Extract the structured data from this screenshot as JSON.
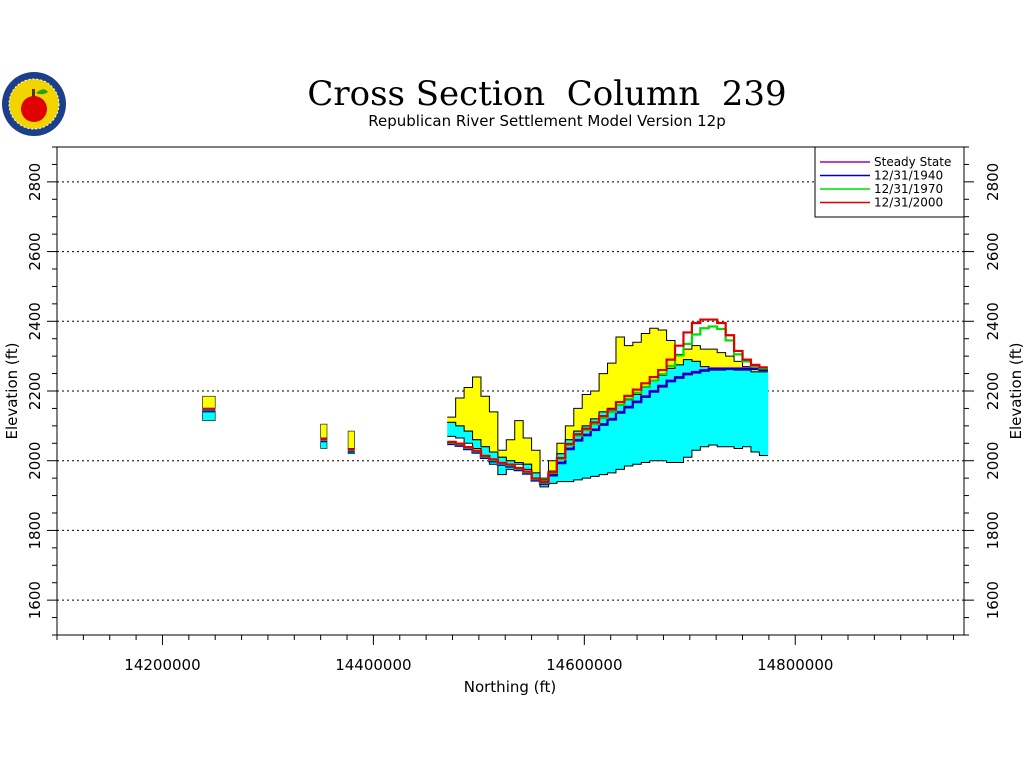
{
  "chart_data": {
    "type": "area",
    "title": "Cross Section  Column  239",
    "subtitle": "Republican River Settlement Model Version 12p",
    "xlabel": "Northing (ft)",
    "ylabel": "Elevation (ft)",
    "xlim": [
      14100000,
      14960000
    ],
    "ylim": [
      1500,
      2900
    ],
    "xticks": [
      14200000,
      14400000,
      14600000,
      14800000
    ],
    "xtick_labels": [
      "14200000",
      "14400000",
      "14600000",
      "14800000"
    ],
    "yticks": [
      1600,
      1800,
      2000,
      2200,
      2400,
      2600,
      2800
    ],
    "ytick_labels": [
      "1600",
      "1800",
      "2000",
      "2200",
      "2400",
      "2600",
      "2800"
    ],
    "grid": {
      "y": true,
      "x": false,
      "style": "dotted"
    },
    "legend_position": "top-right",
    "colors": {
      "upper_layer": "#ffff00",
      "lower_layer": "#00ffff",
      "steady_state": "#aa00aa",
      "y1940": "#0000cc",
      "y1970": "#00dd00",
      "y2000": "#dd0000"
    },
    "layers": [
      {
        "name": "upper",
        "color": "#ffff00",
        "segments": [
          {
            "x": [
              14238000,
              14250000
            ],
            "top": [
              2185,
              2185
            ],
            "bottom": [
              2140,
              2140
            ]
          },
          {
            "x": [
              14350000,
              14356000
            ],
            "top": [
              2105,
              2105
            ],
            "bottom": [
              2065,
              2065
            ]
          },
          {
            "x": [
              14376000,
              14382000
            ],
            "top": [
              2085,
              2085
            ],
            "bottom": [
              2035,
              2035
            ]
          },
          {
            "x": [
              14474000,
              14482000,
              14490000,
              14498000,
              14506000,
              14514000,
              14522000,
              14530000,
              14538000,
              14546000,
              14554000,
              14562000,
              14570000,
              14578000,
              14586000,
              14594000,
              14602000,
              14610000,
              14618000,
              14626000,
              14634000,
              14642000,
              14650000,
              14658000,
              14666000,
              14674000,
              14682000,
              14690000,
              14698000,
              14706000,
              14714000,
              14722000,
              14730000,
              14738000,
              14746000,
              14754000,
              14762000,
              14770000
            ],
            "top": [
              2125,
              2180,
              2210,
              2240,
              2185,
              2140,
              2030,
              2060,
              2115,
              2065,
              2030,
              1950,
              2000,
              2050,
              2100,
              2150,
              2190,
              2200,
              2250,
              2280,
              2355,
              2330,
              2340,
              2365,
              2380,
              2375,
              2345,
              2305,
              2320,
              2330,
              2320,
              2320,
              2310,
              2300,
              2285,
              2270,
              2265,
              2260
            ],
            "bottom": [
              2110,
              2100,
              2085,
              2060,
              2040,
              2025,
              2010,
              2000,
              1995,
              1990,
              1965,
              1945,
              1970,
              2020,
              2060,
              2085,
              2100,
              2120,
              2140,
              2150,
              2160,
              2175,
              2190,
              2210,
              2230,
              2245,
              2265,
              2275,
              2290,
              2285,
              2270,
              2260,
              2260,
              2265,
              2260,
              2260,
              2255,
              2255
            ]
          }
        ]
      },
      {
        "name": "lower",
        "color": "#00ffff",
        "segments": [
          {
            "x": [
              14238000,
              14250000
            ],
            "top": [
              2140,
              2140
            ],
            "bottom": [
              2115,
              2115
            ]
          },
          {
            "x": [
              14350000,
              14356000
            ],
            "top": [
              2065,
              2065
            ],
            "bottom": [
              2035,
              2035
            ]
          },
          {
            "x": [
              14376000,
              14382000
            ],
            "top": [
              2035,
              2035
            ],
            "bottom": [
              2020,
              2020
            ]
          },
          {
            "x": [
              14474000,
              14482000,
              14490000,
              14498000,
              14506000,
              14514000,
              14522000,
              14530000,
              14538000,
              14546000,
              14554000,
              14562000,
              14570000,
              14578000,
              14586000,
              14594000,
              14602000,
              14610000,
              14618000,
              14626000,
              14634000,
              14642000,
              14650000,
              14658000,
              14666000,
              14674000,
              14682000,
              14690000,
              14698000,
              14706000,
              14714000,
              14722000,
              14730000,
              14738000,
              14746000,
              14754000,
              14762000,
              14770000
            ],
            "top": [
              2110,
              2100,
              2085,
              2060,
              2040,
              2025,
              2010,
              2000,
              1995,
              1990,
              1965,
              1945,
              1970,
              2020,
              2060,
              2085,
              2100,
              2120,
              2140,
              2150,
              2160,
              2175,
              2190,
              2210,
              2230,
              2245,
              2265,
              2275,
              2290,
              2285,
              2270,
              2260,
              2260,
              2265,
              2260,
              2260,
              2255,
              2255
            ],
            "bottom": [
              2070,
              2065,
              2050,
              2035,
              2010,
              1990,
              1960,
              1975,
              1990,
              1975,
              1945,
              1925,
              1935,
              1940,
              1940,
              1945,
              1950,
              1955,
              1960,
              1965,
              1975,
              1985,
              1990,
              1995,
              2000,
              2000,
              1995,
              1995,
              2010,
              2030,
              2040,
              2045,
              2040,
              2040,
              2035,
              2040,
              2025,
              2015
            ]
          }
        ]
      }
    ],
    "series": [
      {
        "name": "Steady State",
        "color": "#aa00aa",
        "segments": [
          {
            "x": [
              14238000,
              14250000
            ],
            "y": [
              2145,
              2145
            ]
          },
          {
            "x": [
              14350000,
              14356000
            ],
            "y": [
              2058,
              2058
            ]
          },
          {
            "x": [
              14376000,
              14382000
            ],
            "y": [
              2028,
              2028
            ]
          },
          {
            "x": [
              14474000,
              14482000,
              14490000,
              14498000,
              14506000,
              14514000,
              14522000,
              14530000,
              14538000,
              14546000,
              14554000,
              14562000,
              14570000,
              14578000,
              14586000,
              14594000,
              14602000,
              14610000,
              14618000,
              14626000,
              14634000,
              14642000,
              14650000,
              14658000,
              14666000,
              14674000,
              14682000,
              14690000,
              14698000,
              14706000,
              14714000,
              14722000,
              14730000,
              14738000,
              14746000,
              14754000,
              14762000,
              14770000
            ],
            "y": [
              2050,
              2045,
              2035,
              2025,
              2010,
              2000,
              1990,
              1985,
              1975,
              1965,
              1945,
              1935,
              1960,
              1995,
              2035,
              2060,
              2075,
              2090,
              2105,
              2120,
              2140,
              2155,
              2170,
              2185,
              2200,
              2215,
              2230,
              2240,
              2250,
              2255,
              2260,
              2265,
              2265,
              2265,
              2265,
              2265,
              2265,
              2262
            ]
          }
        ]
      },
      {
        "name": "12/31/1940",
        "color": "#0000cc",
        "segments": [
          {
            "x": [
              14238000,
              14250000
            ],
            "y": [
              2142,
              2142
            ]
          },
          {
            "x": [
              14350000,
              14356000
            ],
            "y": [
              2056,
              2056
            ]
          },
          {
            "x": [
              14376000,
              14382000
            ],
            "y": [
              2026,
              2026
            ]
          },
          {
            "x": [
              14474000,
              14482000,
              14490000,
              14498000,
              14506000,
              14514000,
              14522000,
              14530000,
              14538000,
              14546000,
              14554000,
              14562000,
              14570000,
              14578000,
              14586000,
              14594000,
              14602000,
              14610000,
              14618000,
              14626000,
              14634000,
              14642000,
              14650000,
              14658000,
              14666000,
              14674000,
              14682000,
              14690000,
              14698000,
              14706000,
              14714000,
              14722000,
              14730000,
              14738000,
              14746000,
              14754000,
              14762000,
              14770000
            ],
            "y": [
              2048,
              2043,
              2033,
              2023,
              2008,
              1998,
              1988,
              1983,
              1973,
              1963,
              1943,
              1933,
              1958,
              1993,
              2033,
              2058,
              2073,
              2088,
              2103,
              2118,
              2138,
              2153,
              2168,
              2183,
              2198,
              2213,
              2228,
              2238,
              2248,
              2253,
              2258,
              2263,
              2263,
              2263,
              2263,
              2263,
              2263,
              2260
            ]
          }
        ]
      },
      {
        "name": "12/31/1970",
        "color": "#00dd00",
        "segments": [
          {
            "x": [
              14238000,
              14250000
            ],
            "y": [
              2147,
              2147
            ]
          },
          {
            "x": [
              14350000,
              14356000
            ],
            "y": [
              2060,
              2060
            ]
          },
          {
            "x": [
              14376000,
              14382000
            ],
            "y": [
              2030,
              2030
            ]
          },
          {
            "x": [
              14474000,
              14482000,
              14490000,
              14498000,
              14506000,
              14514000,
              14522000,
              14530000,
              14538000,
              14546000,
              14554000,
              14562000,
              14570000,
              14578000,
              14586000,
              14594000,
              14602000,
              14610000,
              14618000,
              14626000,
              14634000,
              14642000,
              14650000,
              14658000,
              14666000,
              14674000,
              14682000,
              14690000,
              14698000,
              14706000,
              14714000,
              14722000,
              14730000,
              14738000,
              14746000,
              14754000,
              14762000,
              14770000
            ],
            "y": [
              2052,
              2047,
              2037,
              2027,
              2012,
              2002,
              1992,
              1987,
              1977,
              1967,
              1947,
              1937,
              1965,
              2005,
              2045,
              2072,
              2088,
              2105,
              2122,
              2140,
              2160,
              2178,
              2195,
              2212,
              2230,
              2248,
              2272,
              2302,
              2335,
              2362,
              2380,
              2385,
              2378,
              2345,
              2305,
              2285,
              2272,
              2265
            ]
          }
        ]
      },
      {
        "name": "12/31/2000",
        "color": "#dd0000",
        "segments": [
          {
            "x": [
              14238000,
              14250000
            ],
            "y": [
              2149,
              2149
            ]
          },
          {
            "x": [
              14350000,
              14356000
            ],
            "y": [
              2062,
              2062
            ]
          },
          {
            "x": [
              14376000,
              14382000
            ],
            "y": [
              2032,
              2032
            ]
          },
          {
            "x": [
              14474000,
              14482000,
              14490000,
              14498000,
              14506000,
              14514000,
              14522000,
              14530000,
              14538000,
              14546000,
              14554000,
              14562000,
              14570000,
              14578000,
              14586000,
              14594000,
              14602000,
              14610000,
              14618000,
              14626000,
              14634000,
              14642000,
              14650000,
              14658000,
              14666000,
              14674000,
              14682000,
              14690000,
              14698000,
              14706000,
              14714000,
              14722000,
              14730000,
              14738000,
              14746000,
              14754000,
              14762000,
              14770000
            ],
            "y": [
              2054,
              2049,
              2039,
              2029,
              2014,
              2004,
              1994,
              1989,
              1979,
              1969,
              1949,
              1939,
              1967,
              2008,
              2048,
              2076,
              2092,
              2110,
              2128,
              2147,
              2168,
              2186,
              2204,
              2222,
              2240,
              2260,
              2290,
              2330,
              2368,
              2395,
              2405,
              2405,
              2395,
              2360,
              2315,
              2290,
              2275,
              2268
            ]
          }
        ]
      }
    ]
  }
}
